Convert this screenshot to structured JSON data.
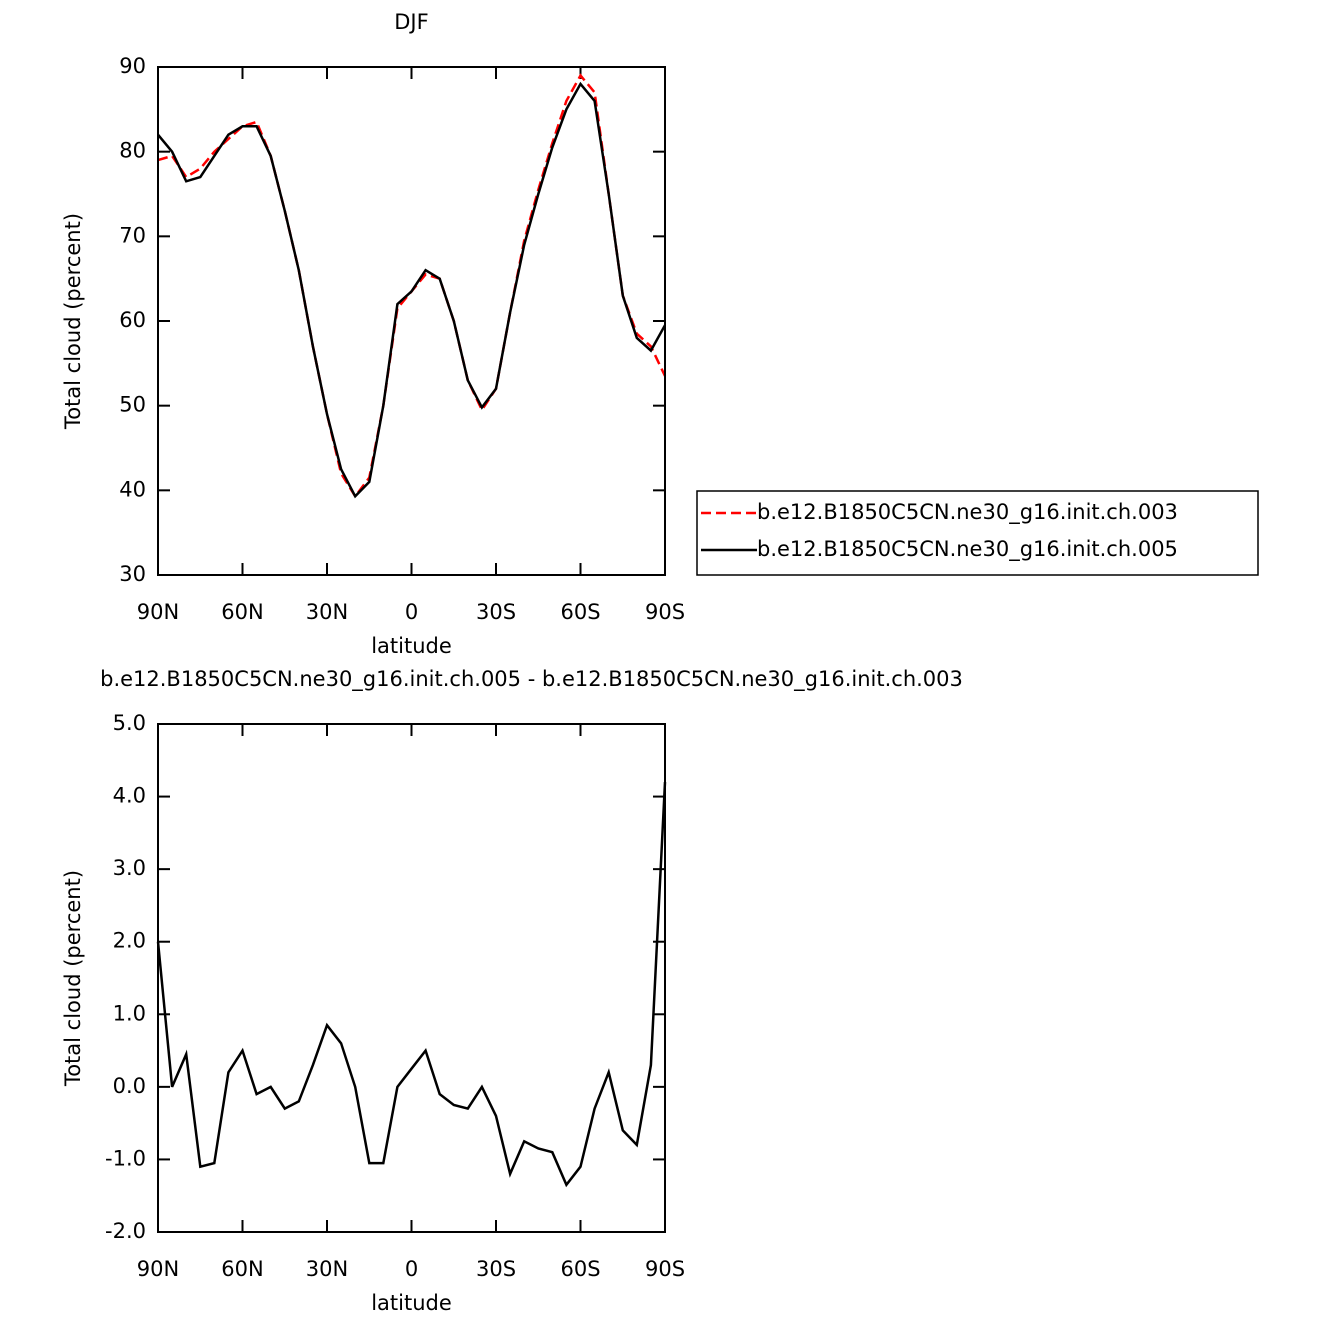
{
  "chart_data": [
    {
      "type": "line",
      "title": "DJF",
      "xlabel": "latitude",
      "ylabel": "Total cloud (percent)",
      "x": [
        90,
        85,
        80,
        75,
        70,
        65,
        60,
        55,
        50,
        45,
        40,
        35,
        30,
        25,
        20,
        15,
        10,
        5,
        0,
        -5,
        -10,
        -15,
        -20,
        -25,
        -30,
        -35,
        -40,
        -45,
        -50,
        -55,
        -60,
        -65,
        -70,
        -75,
        -80,
        -85,
        -90
      ],
      "series": [
        {
          "name": "b.e12.B1850C5CN.ne30_g16.init.ch.003",
          "color": "#ff0000",
          "dash": "dashed",
          "values": [
            79,
            79.5,
            77,
            78,
            80,
            81.5,
            83,
            83.5,
            79.5,
            73,
            66,
            57,
            49,
            42,
            39.3,
            41.5,
            50,
            61.5,
            63.5,
            65.5,
            65,
            60,
            53,
            49.5,
            52,
            61,
            69.5,
            75.5,
            81,
            86,
            89,
            87,
            75,
            63,
            58.5,
            57,
            53.5
          ]
        },
        {
          "name": "b.e12.B1850C5CN.ne30_g16.init.ch.005",
          "color": "#000000",
          "dash": "solid",
          "values": [
            82,
            80,
            76.5,
            77,
            79.5,
            82,
            83,
            83,
            79.5,
            73,
            66,
            57,
            49,
            42.5,
            39.3,
            41,
            50,
            62,
            63.5,
            66,
            65,
            60,
            53,
            49.8,
            52,
            61,
            69,
            75,
            80.5,
            85,
            88,
            86,
            75,
            63,
            58,
            56.5,
            59.5
          ]
        }
      ],
      "xlim": [
        90,
        -90
      ],
      "xticks": [
        {
          "value": 90,
          "label": "90N"
        },
        {
          "value": 60,
          "label": "60N"
        },
        {
          "value": 30,
          "label": "30N"
        },
        0,
        {
          "value": -30,
          "label": "30S"
        },
        {
          "value": -60,
          "label": "60S"
        },
        {
          "value": -90,
          "label": "90S"
        }
      ],
      "ylim": [
        30,
        90
      ],
      "yticks": [
        30,
        40,
        50,
        60,
        70,
        80,
        90
      ],
      "legend": "right"
    },
    {
      "type": "line",
      "title": "b.e12.B1850C5CN.ne30_g16.init.ch.005 - b.e12.B1850C5CN.ne30_g16.init.ch.003",
      "xlabel": "latitude",
      "ylabel": "Total cloud (percent)",
      "x": [
        90,
        85,
        80,
        75,
        70,
        65,
        60,
        55,
        50,
        45,
        40,
        35,
        30,
        25,
        20,
        15,
        10,
        5,
        0,
        -5,
        -10,
        -15,
        -20,
        -25,
        -30,
        -35,
        -40,
        -45,
        -50,
        -55,
        -60,
        -65,
        -70,
        -75,
        -80,
        -85,
        -90
      ],
      "series": [
        {
          "color": "#000000",
          "dash": "solid",
          "values": [
            2.0,
            0.0,
            0.45,
            -1.1,
            -1.05,
            0.2,
            0.5,
            -0.1,
            0.0,
            -0.3,
            -0.2,
            0.3,
            0.85,
            0.6,
            0.0,
            -1.05,
            -1.05,
            0.0,
            0.25,
            0.5,
            -0.1,
            -0.25,
            -0.3,
            0.0,
            -0.4,
            -1.2,
            -0.75,
            -0.85,
            -0.9,
            -1.35,
            -1.1,
            -0.3,
            0.2,
            -0.6,
            -0.8,
            0.3,
            4.2
          ]
        }
      ],
      "xlim": [
        90,
        -90
      ],
      "xticks": [
        {
          "value": 90,
          "label": "90N"
        },
        {
          "value": 60,
          "label": "60N"
        },
        {
          "value": 30,
          "label": "30N"
        },
        0,
        {
          "value": -30,
          "label": "30S"
        },
        {
          "value": -60,
          "label": "60S"
        },
        {
          "value": -90,
          "label": "90S"
        }
      ],
      "ylim": [
        -2,
        5
      ],
      "yticks": [
        {
          "value": -2,
          "label": "-2.0"
        },
        {
          "value": -1,
          "label": "-1.0"
        },
        {
          "value": 0,
          "label": "0.0"
        },
        {
          "value": 1,
          "label": "1.0"
        },
        {
          "value": 2,
          "label": "2.0"
        },
        {
          "value": 3,
          "label": "3.0"
        },
        {
          "value": 4,
          "label": "4.0"
        },
        {
          "value": 5,
          "label": "5.0"
        }
      ]
    }
  ]
}
